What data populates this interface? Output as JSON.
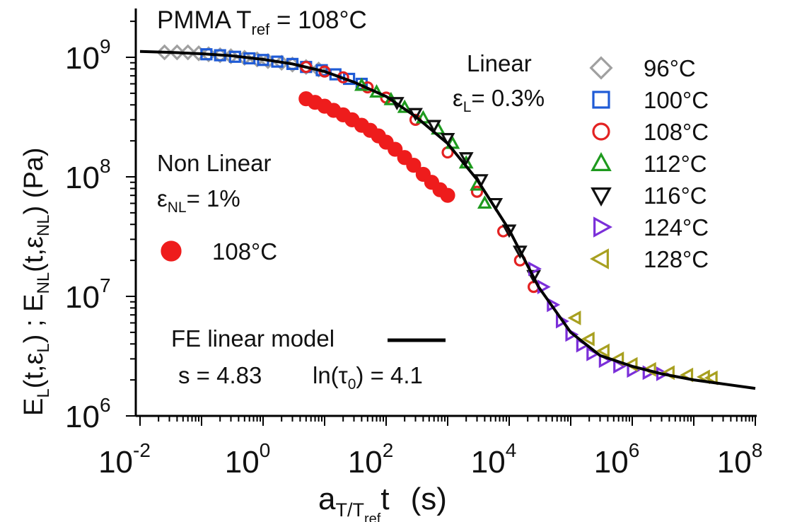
{
  "chart_data": {
    "type": "scatter",
    "title": "PMMA  T",
    "title_sub": "ref",
    "title_tail": " = 108°C",
    "xlabel": {
      "a": "a",
      "sub": "T/T",
      "subsub": "ref",
      "t": "t",
      "unit": "(s)"
    },
    "ylabel": {
      "e1": "E",
      "s1": "L",
      "p1": "(t,ε",
      "s2": "L",
      "p2": ") ; E",
      "s3": "NL",
      "p3": "(t,ε",
      "s4": "NL",
      "p4": ")  (Pa)"
    },
    "x_scale": "log",
    "y_scale": "log",
    "xlim": [
      0.01,
      100000000
    ],
    "ylim": [
      1000000,
      2000000000
    ],
    "x_ticks": [
      {
        "base": "10",
        "exp": "-2",
        "value": 0.01
      },
      {
        "base": "10",
        "exp": "0",
        "value": 1
      },
      {
        "base": "10",
        "exp": "2",
        "value": 100
      },
      {
        "base": "10",
        "exp": "4",
        "value": 10000
      },
      {
        "base": "10",
        "exp": "6",
        "value": 1000000
      },
      {
        "base": "10",
        "exp": "8",
        "value": 100000000
      }
    ],
    "y_ticks": [
      {
        "base": "10",
        "exp": "6",
        "value": 1000000
      },
      {
        "base": "10",
        "exp": "7",
        "value": 10000000
      },
      {
        "base": "10",
        "exp": "8",
        "value": 100000000
      },
      {
        "base": "10",
        "exp": "9",
        "value": 1000000000
      }
    ],
    "legend_linear": {
      "title": "Linear",
      "strain_symbol": "ε",
      "strain_sub": "L",
      "strain_value": "= 0.3%"
    },
    "legend_nonlinear": {
      "title": "Non Linear",
      "strain_symbol": "ε",
      "strain_sub": "NL",
      "strain_value": "= 1%"
    },
    "model": {
      "label": "FE linear model",
      "s_text": "s = 4.83",
      "tau_pre": "ln(τ",
      "tau_sub": "0",
      "tau_post": ") = 4.1"
    },
    "series": [
      {
        "name": "96°C",
        "group": "linear",
        "marker": "diamond",
        "color": "#a0a0a0",
        "filled": false,
        "points": [
          [
            0.025,
            1100000000.0
          ],
          [
            0.04,
            1100000000.0
          ],
          [
            0.06,
            1100000000.0
          ],
          [
            0.09,
            1080000000.0
          ],
          [
            0.13,
            1060000000.0
          ],
          [
            0.2,
            1040000000.0
          ],
          [
            0.3,
            1020000000.0
          ],
          [
            0.5,
            990000000.0
          ],
          [
            0.8,
            960000000.0
          ],
          [
            1.2,
            930000000.0
          ],
          [
            2,
            900000000.0
          ],
          [
            3,
            870000000.0
          ],
          [
            5,
            830000000.0
          ],
          [
            8,
            790000000.0
          ]
        ]
      },
      {
        "name": "100°C",
        "group": "linear",
        "marker": "square",
        "color": "#1f5bd6",
        "filled": false,
        "points": [
          [
            0.12,
            1060000000.0
          ],
          [
            0.2,
            1040000000.0
          ],
          [
            0.35,
            1010000000.0
          ],
          [
            0.6,
            980000000.0
          ],
          [
            1,
            950000000.0
          ],
          [
            1.7,
            920000000.0
          ],
          [
            3,
            880000000.0
          ],
          [
            5,
            830000000.0
          ],
          [
            9,
            780000000.0
          ],
          [
            15,
            720000000.0
          ],
          [
            25,
            660000000.0
          ],
          [
            40,
            600000000.0
          ]
        ]
      },
      {
        "name": "108°C",
        "group": "linear",
        "marker": "circle",
        "color": "#e32222",
        "filled": false,
        "points": [
          [
            5,
            830000000.0
          ],
          [
            10,
            760000000.0
          ],
          [
            20,
            680000000.0
          ],
          [
            50,
            560000000.0
          ],
          [
            100,
            460000000.0
          ],
          [
            300,
            300000000.0
          ],
          [
            1000,
            160000000.0
          ],
          [
            3000,
            75000000.0
          ],
          [
            8000,
            35000000.0
          ],
          [
            15000,
            20000000.0
          ],
          [
            25000,
            12000000.0
          ]
        ]
      },
      {
        "name": "112°C",
        "group": "linear",
        "marker": "triangle-up",
        "color": "#1e9a1e",
        "filled": false,
        "points": [
          [
            40,
            580000000.0
          ],
          [
            70,
            510000000.0
          ],
          [
            120,
            440000000.0
          ],
          [
            200,
            380000000.0
          ],
          [
            400,
            310000000.0
          ],
          [
            700,
            250000000.0
          ],
          [
            1200,
            190000000.0
          ],
          [
            2000,
            130000000.0
          ],
          [
            3000,
            85000000.0
          ],
          [
            4000,
            60000000.0
          ]
        ]
      },
      {
        "name": "116°C",
        "group": "linear",
        "marker": "triangle-down",
        "color": "#111111",
        "filled": false,
        "points": [
          [
            150,
            420000000.0
          ],
          [
            300,
            340000000.0
          ],
          [
            600,
            270000000.0
          ],
          [
            1000,
            210000000.0
          ],
          [
            2000,
            145000000.0
          ],
          [
            3500,
            95000000.0
          ],
          [
            6000,
            60000000.0
          ],
          [
            10000,
            36000000.0
          ],
          [
            15000,
            24000000.0
          ],
          [
            25000,
            15000000.0
          ]
        ]
      },
      {
        "name": "124°C",
        "group": "linear",
        "marker": "triangle-right",
        "color": "#7b2fd9",
        "filled": false,
        "points": [
          [
            25000,
            17000000.0
          ],
          [
            35000,
            12000000.0
          ],
          [
            50000,
            8500000.0
          ],
          [
            70000,
            6200000.0
          ],
          [
            100000,
            4800000.0
          ],
          [
            150000,
            3900000.0
          ],
          [
            220000,
            3300000.0
          ],
          [
            350000,
            2900000.0
          ],
          [
            600000,
            2600000.0
          ],
          [
            1000000,
            2400000.0
          ],
          [
            1800000,
            2300000.0
          ],
          [
            3000000,
            2250000.0
          ]
        ]
      },
      {
        "name": "128°C",
        "group": "linear",
        "marker": "triangle-left",
        "color": "#a8a020",
        "filled": false,
        "points": [
          [
            120000,
            6600000.0
          ],
          [
            200000,
            4400000.0
          ],
          [
            350000,
            3500000.0
          ],
          [
            600000,
            3000000.0
          ],
          [
            1000000,
            2700000.0
          ],
          [
            2000000,
            2450000.0
          ],
          [
            4000000,
            2300000.0
          ],
          [
            8000000,
            2200000.0
          ],
          [
            15000000,
            2120000.0
          ],
          [
            20000000,
            2080000.0
          ]
        ]
      },
      {
        "name": "108°C",
        "group": "nonlinear",
        "marker": "circle",
        "color": "#ee1c1c",
        "filled": true,
        "points": [
          [
            5,
            450000000.0
          ],
          [
            7,
            420000000.0
          ],
          [
            10,
            390000000.0
          ],
          [
            14,
            360000000.0
          ],
          [
            20,
            330000000.0
          ],
          [
            28,
            300000000.0
          ],
          [
            40,
            270000000.0
          ],
          [
            55,
            245000000.0
          ],
          [
            75,
            220000000.0
          ],
          [
            100,
            195000000.0
          ],
          [
            140,
            170000000.0
          ],
          [
            200,
            145000000.0
          ],
          [
            280,
            125000000.0
          ],
          [
            400,
            105000000.0
          ],
          [
            550,
            90000000.0
          ],
          [
            750,
            78000000.0
          ],
          [
            1000,
            70000000.0
          ]
        ]
      }
    ],
    "model_curve": [
      [
        0.01,
        1120000000.0
      ],
      [
        0.03,
        1100000000.0
      ],
      [
        0.1,
        1070000000.0
      ],
      [
        0.3,
        1030000000.0
      ],
      [
        1,
        960000000.0
      ],
      [
        3,
        880000000.0
      ],
      [
        10,
        760000000.0
      ],
      [
        30,
        620000000.0
      ],
      [
        100,
        470000000.0
      ],
      [
        300,
        320000000.0
      ],
      [
        1000,
        190000000.0
      ],
      [
        3000,
        95000000.0
      ],
      [
        10000,
        36000000.0
      ],
      [
        30000,
        12000000.0
      ],
      [
        100000,
        5000000.0
      ],
      [
        300000,
        3200000.0
      ],
      [
        1000000,
        2600000.0
      ],
      [
        3000000,
        2250000.0
      ],
      [
        10000000,
        2000000.0
      ],
      [
        30000000,
        1850000.0
      ],
      [
        100000000,
        1700000.0
      ]
    ]
  }
}
